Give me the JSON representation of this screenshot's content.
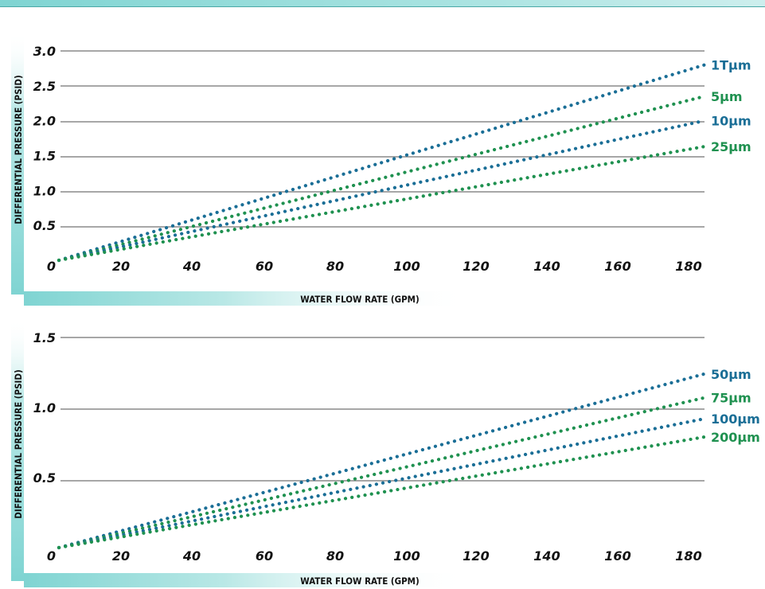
{
  "colors": {
    "blue": "#1a6e96",
    "green": "#1f9150",
    "grid": "#8a8a8a",
    "band": "#7fd4d2"
  },
  "chart_data": [
    {
      "type": "line",
      "xlabel": "WATER FLOW RATE (GPM)",
      "ylabel": "DIFFERENTIAL PRESSURE (PSID)",
      "xlim": [
        0,
        185
      ],
      "ylim": [
        0,
        3.0
      ],
      "x_ticks": [
        "20",
        "40",
        "60",
        "80",
        "100",
        "120",
        "140",
        "160",
        "180"
      ],
      "y_ticks": [
        "0",
        "0.5",
        "1.0",
        "1.5",
        "2.0",
        "2.5",
        "3.0"
      ],
      "grid": true,
      "series": [
        {
          "name": "1Tµm",
          "color": "#1a6e96",
          "x": [
            0,
            185
          ],
          "y": [
            0,
            2.8
          ]
        },
        {
          "name": "5µm",
          "color": "#1f9150",
          "x": [
            0,
            185
          ],
          "y": [
            0,
            2.35
          ]
        },
        {
          "name": "10µm",
          "color": "#1a6e96",
          "x": [
            0,
            185
          ],
          "y": [
            0,
            2.0
          ]
        },
        {
          "name": "25µm",
          "color": "#1f9150",
          "x": [
            0,
            185
          ],
          "y": [
            0,
            1.63
          ]
        }
      ]
    },
    {
      "type": "line",
      "xlabel": "WATER FLOW RATE (GPM)",
      "ylabel": "DIFFERENTIAL PRESSURE (PSID)",
      "xlim": [
        0,
        185
      ],
      "ylim": [
        0,
        1.5
      ],
      "x_ticks": [
        "20",
        "40",
        "60",
        "80",
        "100",
        "120",
        "140",
        "160",
        "180"
      ],
      "y_ticks": [
        "0",
        "0.5",
        "1.0",
        "1.5"
      ],
      "grid": true,
      "series": [
        {
          "name": "50µm",
          "color": "#1a6e96",
          "x": [
            0,
            185
          ],
          "y": [
            0,
            1.24
          ]
        },
        {
          "name": "75µm",
          "color": "#1f9150",
          "x": [
            0,
            185
          ],
          "y": [
            0,
            1.07
          ]
        },
        {
          "name": "100µm",
          "color": "#1a6e96",
          "x": [
            0,
            185
          ],
          "y": [
            0,
            0.92
          ]
        },
        {
          "name": "200µm",
          "color": "#1f9150",
          "x": [
            0,
            185
          ],
          "y": [
            0,
            0.79
          ]
        }
      ]
    }
  ]
}
